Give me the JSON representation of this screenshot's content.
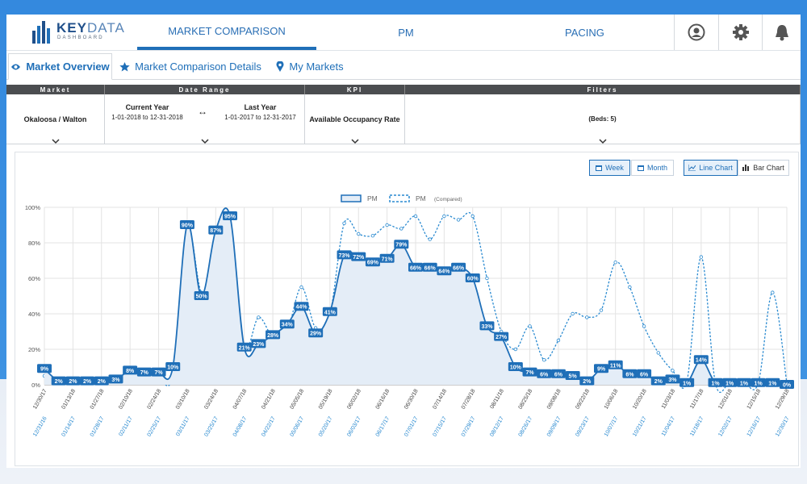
{
  "header": {
    "logo_bold": "KEY",
    "logo_light": "DATA",
    "logo_sub": "DASHBOARD",
    "nav": [
      "MARKET COMPARISON",
      "PM",
      "PACING"
    ],
    "nav_active": 0
  },
  "tabs": {
    "items": [
      "Market Overview",
      "Market Comparison Details",
      "My Markets"
    ],
    "active": 0
  },
  "filters": {
    "headers": [
      "Market",
      "Date Range",
      "KPI",
      "Filters"
    ],
    "market": "Okaloosa / Walton",
    "current_label": "Current Year",
    "current_range": "1-01-2018 to 12-31-2018",
    "compared_label": "Last Year",
    "compared_range": "1-01-2017 to 12-31-2017",
    "kpi": "Available Occupancy Rate",
    "filter": "(Beds: 5)"
  },
  "toolbar": {
    "period": [
      "Week",
      "Month"
    ],
    "period_active": 0,
    "chart_types": [
      "Line Chart",
      "Bar Chart"
    ],
    "chart_type_active": 0
  },
  "chart_data": {
    "type": "line",
    "categories": [
      "12/30/17",
      null,
      "01/13/18",
      null,
      "01/27/18",
      null,
      "02/10/18",
      null,
      "02/24/18",
      null,
      "03/10/18",
      null,
      "03/24/18",
      null,
      "04/07/18",
      null,
      "04/21/18",
      null,
      "05/05/18",
      null,
      "05/19/18",
      null,
      "06/02/18",
      null,
      "06/16/18",
      null,
      "06/30/18",
      null,
      "07/14/18",
      null,
      "07/28/18",
      null,
      "08/11/18",
      null,
      "08/25/18",
      null,
      "09/08/18",
      null,
      "09/22/18",
      null,
      "10/06/18",
      null,
      "10/20/18",
      null,
      "11/03/18",
      null,
      "11/17/18",
      null,
      "12/01/18",
      null,
      "12/15/18",
      null,
      "12/29/18"
    ],
    "compared_categories": [
      "12/31/16",
      null,
      "01/14/17",
      null,
      "01/28/17",
      null,
      "02/11/17",
      null,
      "02/25/17",
      null,
      "03/11/17",
      null,
      "03/25/17",
      null,
      "04/08/17",
      null,
      "04/22/17",
      null,
      "05/06/17",
      null,
      "05/20/17",
      null,
      "06/03/17",
      null,
      "06/17/17",
      null,
      "07/01/17",
      null,
      "07/15/17",
      null,
      "07/29/17",
      null,
      "08/12/17",
      null,
      "08/26/17",
      null,
      "09/09/17",
      null,
      "09/23/17",
      null,
      "10/07/17",
      null,
      "10/21/17",
      null,
      "11/04/17",
      null,
      "11/18/17",
      null,
      "12/02/17",
      null,
      "12/16/17",
      null,
      "12/30/17"
    ],
    "series": [
      {
        "name": "PM",
        "color": "#1f6fb8",
        "style": "solid",
        "fill": "#e4edf7",
        "values": [
          9,
          2,
          2,
          2,
          2,
          3,
          8,
          7,
          7,
          10,
          90,
          50,
          87,
          95,
          21,
          23,
          28,
          34,
          44,
          29,
          41,
          73,
          72,
          69,
          71,
          79,
          66,
          66,
          64,
          66,
          60,
          33,
          27,
          10,
          7,
          6,
          6,
          5,
          2,
          9,
          11,
          6,
          6,
          2,
          3,
          1,
          14,
          1,
          1,
          1,
          1,
          1,
          0
        ],
        "value_labels": [
          "9%",
          "2%",
          "2%",
          "2%",
          "2%",
          "3%",
          "8%",
          "7%",
          "7%",
          "10%",
          "90%",
          "50%",
          "87%",
          "95%",
          "21%",
          "23%",
          "28%",
          "34%",
          "44%",
          "29%",
          "41%",
          "73%",
          "72%",
          "69%",
          "71%",
          "79%",
          "66%",
          "66%",
          "64%",
          "66%",
          "60%",
          "33%",
          "27%",
          "10%",
          "7%",
          "6%",
          "6%",
          "5%",
          "2%",
          "9%",
          "11%",
          "6%",
          "6%",
          "2%",
          "3%",
          "1%",
          "14%",
          "1%",
          "1%",
          "1%",
          "1%",
          "1%",
          "0%"
        ]
      },
      {
        "name": "PM",
        "note": "(Compared)",
        "color": "#2a8ad0",
        "style": "dashed",
        "values": [
          5,
          1,
          1,
          1,
          1,
          2,
          5,
          4,
          4,
          6,
          88,
          52,
          68,
          88,
          22,
          38,
          27,
          30,
          55,
          32,
          40,
          91,
          85,
          84,
          90,
          88,
          95,
          82,
          95,
          93,
          95,
          60,
          30,
          20,
          33,
          14,
          25,
          40,
          38,
          42,
          69,
          55,
          33,
          18,
          8,
          2,
          72,
          1,
          1,
          1,
          1,
          52,
          1
        ]
      }
    ],
    "ylim": [
      0,
      100
    ],
    "yticks": [
      {
        "value": 0,
        "label": "0%"
      },
      {
        "value": 20,
        "label": "20%"
      },
      {
        "value": 40,
        "label": "40%"
      },
      {
        "value": 60,
        "label": "60%"
      },
      {
        "value": 80,
        "label": "80%"
      },
      {
        "value": 100,
        "label": "100%"
      }
    ],
    "grid": true
  }
}
